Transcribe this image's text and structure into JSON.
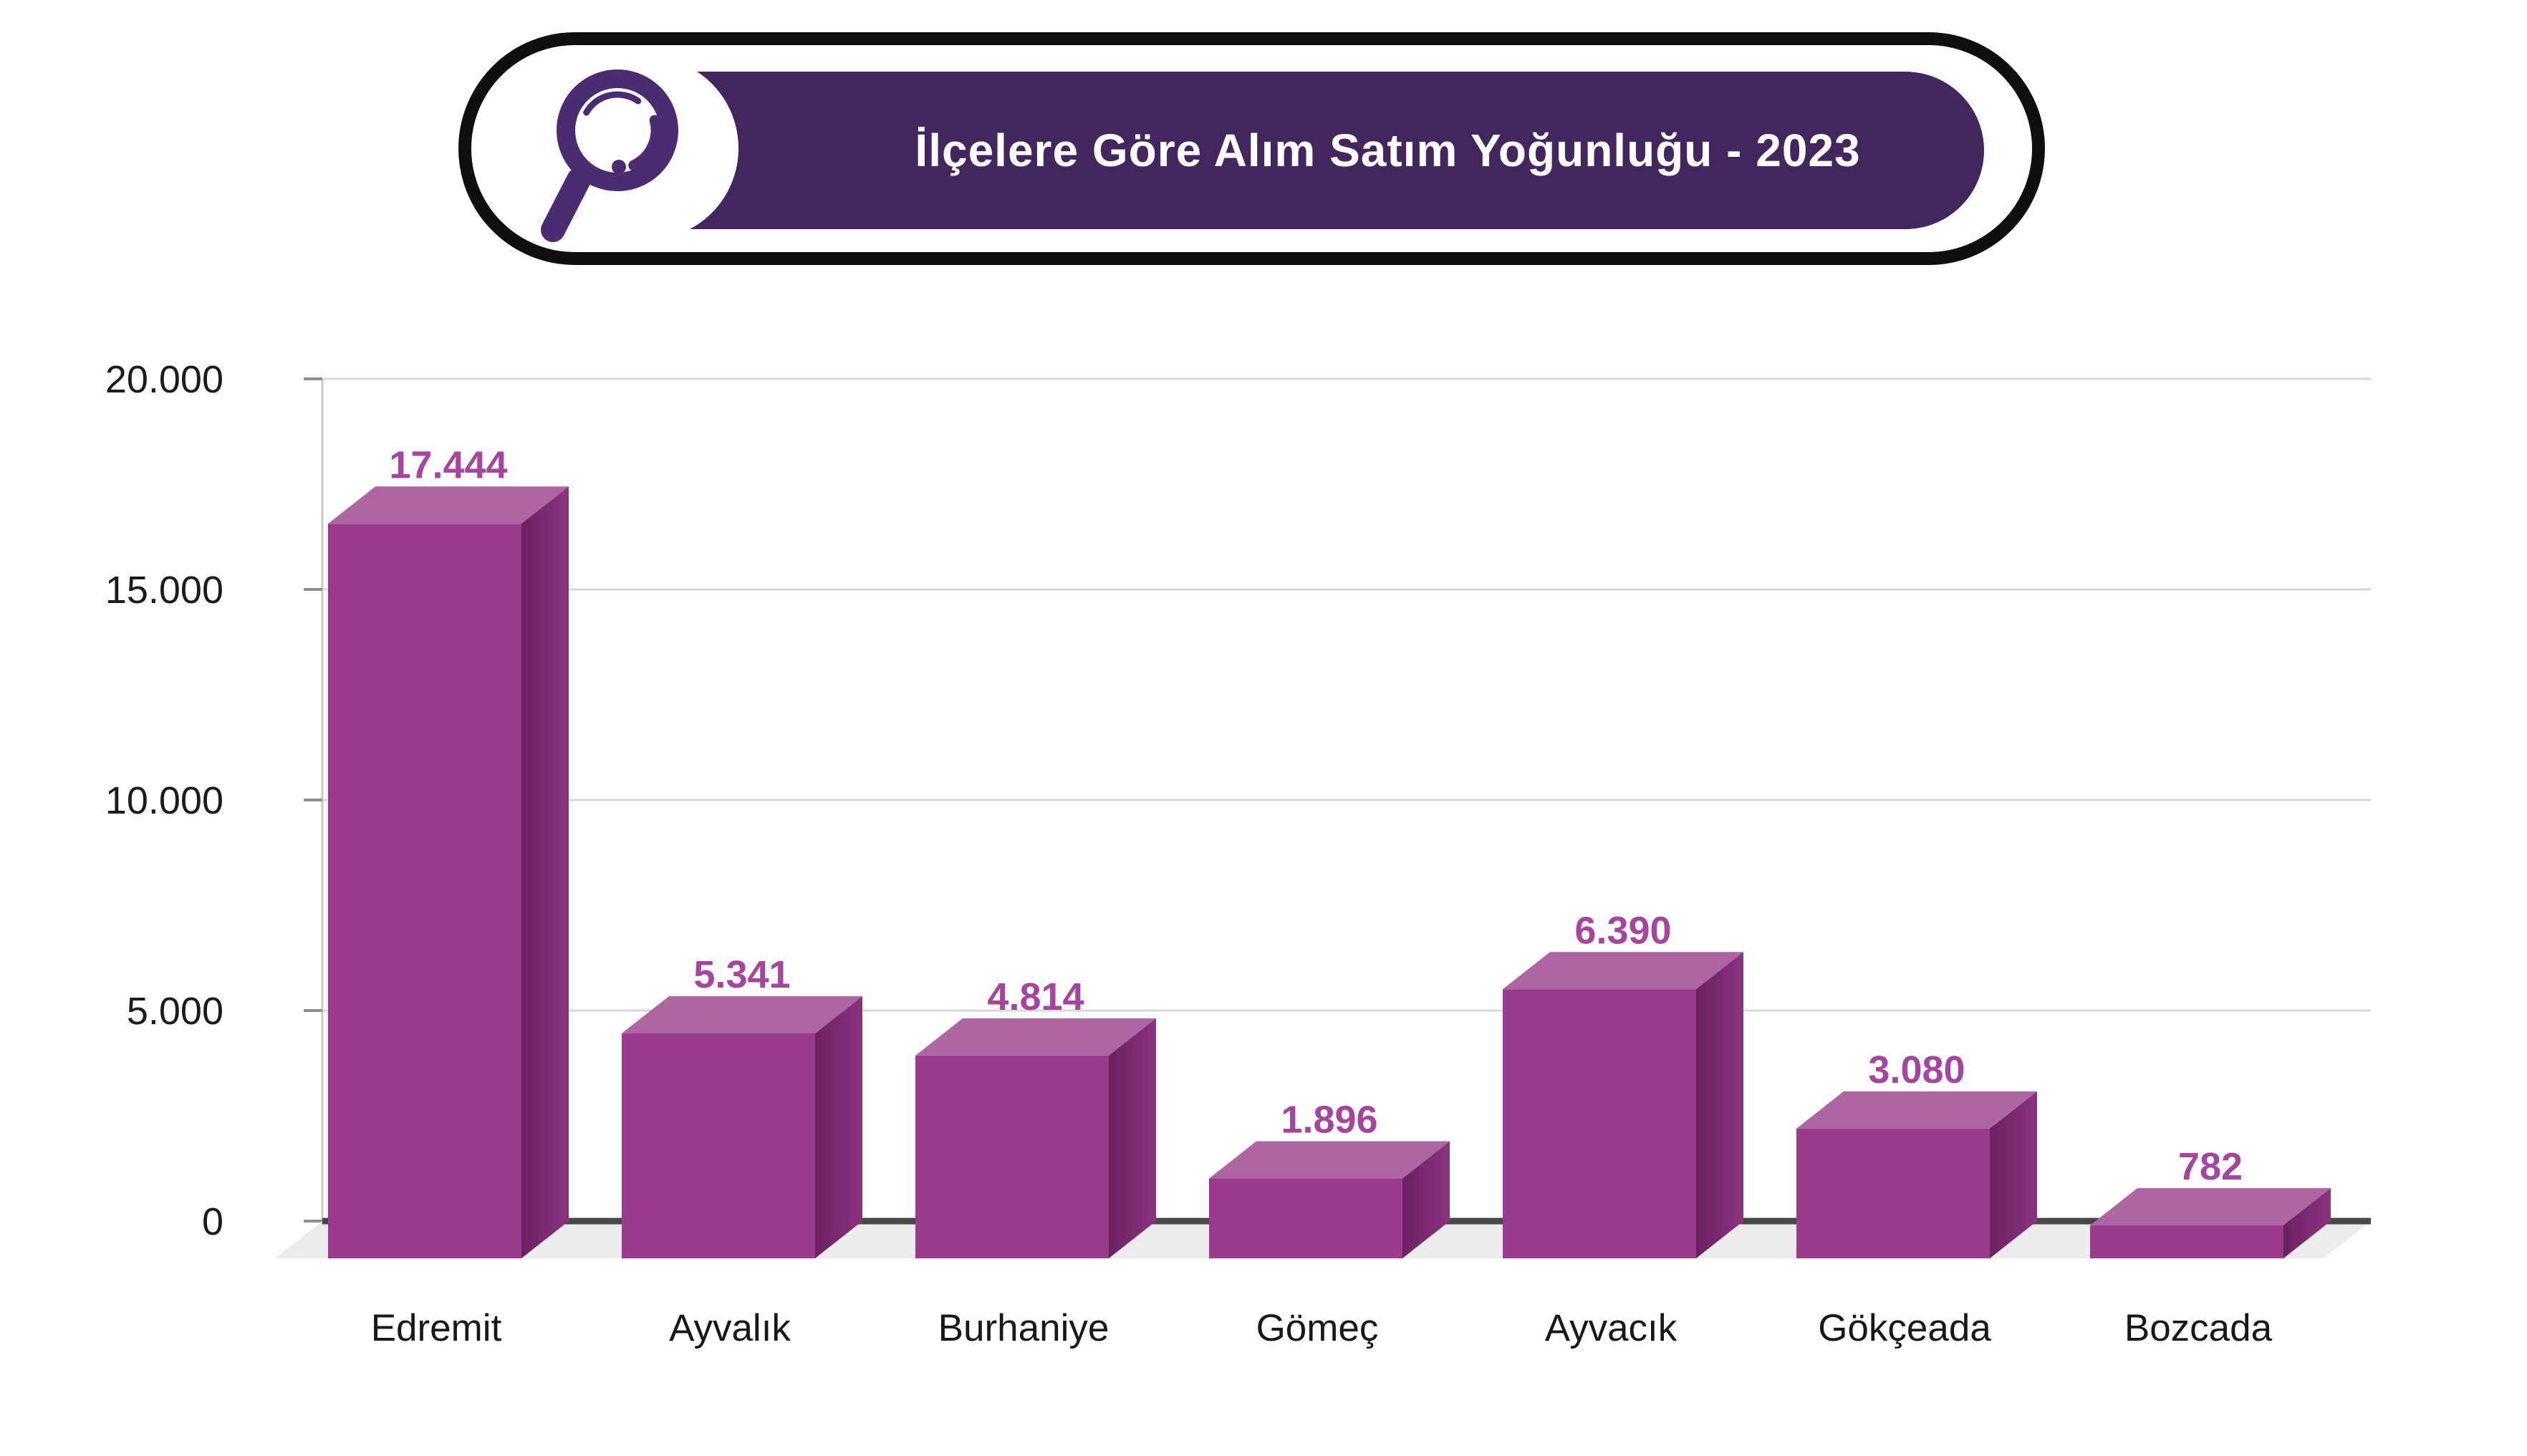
{
  "banner": {
    "title": "İlçelere Göre Alım Satım Yoğunluğu - 2023",
    "bg_color": "#44265e",
    "outline_color": "#0f0f0f",
    "text_color": "#ffffff",
    "icon": "magnifier-icon",
    "icon_color": "#4b2b71"
  },
  "chart_data": {
    "type": "bar",
    "title": "İlçelere Göre Alım Satım Yoğunluğu - 2023",
    "categories": [
      "Edremit",
      "Ayvalık",
      "Burhaniye",
      "Gömeç",
      "Ayvacık",
      "Gökçeada",
      "Bozcada"
    ],
    "values": [
      17444,
      5341,
      4814,
      1896,
      6390,
      3080,
      782
    ],
    "value_labels": [
      "17.444",
      "5.341",
      "4.814",
      "1.896",
      "6.390",
      "3.080",
      "782"
    ],
    "y_ticks": [
      {
        "value": 20000,
        "label": "20.000"
      },
      {
        "value": 15000,
        "label": "15.000"
      },
      {
        "value": 10000,
        "label": "10.000"
      },
      {
        "value": 5000,
        "label": "5.000"
      },
      {
        "value": 0,
        "label": "0"
      }
    ],
    "ylim": [
      0,
      20000
    ],
    "grid": true,
    "legend_position": "none",
    "xlabel": "",
    "ylabel": "",
    "style_3d": true,
    "bar_front_color": "#9a3c8d",
    "bar_top_color": "#ad66a3",
    "bar_side_color_dark": "#6b2160",
    "bar_side_color_light": "#8c3380",
    "value_label_color": "#a4469d",
    "axis_label_color": "#1b1b1b",
    "category_label_color": "#181818",
    "gridline_color": "#d8d8d8",
    "axis_line_color": "#c9c9c9",
    "tick_color": "#8f8f8f",
    "baseline_color": "#474747",
    "floor_color": "#ececec"
  }
}
